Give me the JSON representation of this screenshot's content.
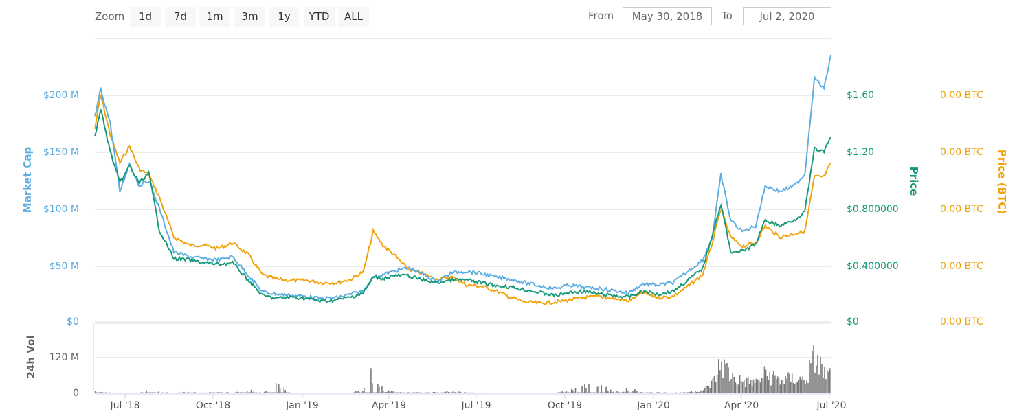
{
  "toolbar": {
    "zoom_label": "Zoom",
    "zoom_buttons": [
      "1d",
      "7d",
      "1m",
      "3m",
      "1y",
      "YTD",
      "ALL"
    ],
    "from_label": "From",
    "from_value": "May 30, 2018",
    "to_label": "To",
    "to_value": "Jul 2, 2020"
  },
  "colors": {
    "market_cap": "#5dade2",
    "price_usd": "#16997a",
    "price_btc": "#f0a30a",
    "volume": "#7a7a7a",
    "grid": "#e6e6e6"
  },
  "axes": {
    "market_cap_title": "Market Cap",
    "market_cap_ticks": [
      "$200 M",
      "$150 M",
      "$100 M",
      "$50 M",
      "$0"
    ],
    "price_title": "Price",
    "price_ticks": [
      "$1.60",
      "$1.20",
      "$0.800000",
      "$0.400000",
      "$0"
    ],
    "price_btc_title": "Price (BTC)",
    "price_btc_ticks": [
      "0.00 BTC",
      "0.00 BTC",
      "0.00 BTC",
      "0.00 BTC",
      "0.00 BTC"
    ],
    "volume_title": "24h Vol",
    "volume_ticks": [
      "$0",
      "120 M",
      "0"
    ],
    "x_ticks": [
      "Jul '18",
      "Oct '18",
      "Jan '19",
      "Apr '19",
      "Jul '19",
      "Oct '19",
      "Jan '20",
      "Apr '20",
      "Jul '20"
    ]
  },
  "chart_data": {
    "type": "line",
    "title": "",
    "x_range": [
      "May 30, 2018",
      "Jul 2, 2020"
    ],
    "x_ticks": [
      "Jul '18",
      "Oct '18",
      "Jan '19",
      "Apr '19",
      "Jul '19",
      "Oct '19",
      "Jan '20",
      "Apr '20",
      "Jul '20"
    ],
    "legend_position": "none",
    "grid": true,
    "x": [
      "2018-05-30",
      "2018-06-05",
      "2018-06-15",
      "2018-06-25",
      "2018-07-05",
      "2018-07-15",
      "2018-07-25",
      "2018-08-05",
      "2018-08-20",
      "2018-09-05",
      "2018-09-20",
      "2018-10-05",
      "2018-10-20",
      "2018-11-05",
      "2018-11-20",
      "2018-12-05",
      "2018-12-20",
      "2019-01-05",
      "2019-01-20",
      "2019-02-05",
      "2019-02-20",
      "2019-03-05",
      "2019-03-15",
      "2019-03-25",
      "2019-04-05",
      "2019-04-20",
      "2019-05-05",
      "2019-05-20",
      "2019-06-05",
      "2019-06-20",
      "2019-07-05",
      "2019-07-20",
      "2019-08-05",
      "2019-08-20",
      "2019-09-05",
      "2019-09-20",
      "2019-10-05",
      "2019-10-20",
      "2019-11-05",
      "2019-11-20",
      "2019-12-05",
      "2019-12-20",
      "2020-01-05",
      "2020-01-20",
      "2020-02-05",
      "2020-02-20",
      "2020-03-01",
      "2020-03-10",
      "2020-03-20",
      "2020-04-01",
      "2020-04-15",
      "2020-04-25",
      "2020-05-10",
      "2020-05-25",
      "2020-06-05",
      "2020-06-15",
      "2020-06-25",
      "2020-07-02"
    ],
    "series": [
      {
        "name": "Market Cap",
        "axis": "left",
        "unit": "USD M",
        "values": [
          180,
          205,
          175,
          115,
          140,
          120,
          125,
          100,
          62,
          58,
          56,
          55,
          58,
          42,
          27,
          25,
          24,
          23,
          21,
          22,
          25,
          28,
          40,
          42,
          45,
          48,
          43,
          36,
          44,
          45,
          43,
          40,
          38,
          35,
          32,
          30,
          33,
          31,
          30,
          28,
          26,
          34,
          33,
          35,
          45,
          55,
          75,
          130,
          90,
          80,
          85,
          120,
          115,
          120,
          130,
          215,
          205,
          235
        ]
      },
      {
        "name": "Price",
        "axis": "right-usd",
        "unit": "USD",
        "values": [
          1.3,
          1.5,
          1.2,
          0.98,
          1.1,
          0.98,
          1.05,
          0.65,
          0.45,
          0.44,
          0.42,
          0.41,
          0.42,
          0.3,
          0.19,
          0.17,
          0.18,
          0.17,
          0.15,
          0.16,
          0.18,
          0.21,
          0.32,
          0.31,
          0.33,
          0.33,
          0.3,
          0.28,
          0.3,
          0.3,
          0.28,
          0.26,
          0.25,
          0.23,
          0.21,
          0.19,
          0.21,
          0.22,
          0.2,
          0.19,
          0.18,
          0.22,
          0.2,
          0.22,
          0.3,
          0.38,
          0.62,
          0.83,
          0.5,
          0.5,
          0.55,
          0.72,
          0.68,
          0.72,
          0.78,
          1.22,
          1.2,
          1.3
        ]
      },
      {
        "name": "Price (BTC)",
        "axis": "right-btc",
        "unit": "BTC (relative)",
        "values": [
          170,
          200,
          165,
          140,
          155,
          135,
          130,
          110,
          75,
          68,
          68,
          65,
          70,
          60,
          42,
          38,
          37,
          37,
          35,
          35,
          38,
          45,
          80,
          68,
          60,
          47,
          43,
          38,
          40,
          33,
          32,
          28,
          22,
          18,
          17,
          18,
          20,
          22,
          23,
          21,
          19,
          26,
          22,
          23,
          32,
          42,
          70,
          100,
          75,
          67,
          70,
          85,
          75,
          78,
          80,
          128,
          128,
          140
        ]
      },
      {
        "name": "24h Vol",
        "axis": "volume",
        "unit": "USD M",
        "note": "bar series, baseline 0; spikes approx",
        "values": [
          8,
          5,
          3,
          2,
          3,
          2,
          12,
          4,
          2,
          5,
          2,
          6,
          2,
          12,
          1,
          32,
          1,
          1,
          1,
          1,
          2,
          20,
          90,
          10,
          8,
          5,
          3,
          5,
          7,
          3,
          2,
          2,
          1,
          1,
          2,
          2,
          12,
          25,
          30,
          6,
          20,
          3,
          5,
          2,
          6,
          12,
          45,
          130,
          70,
          50,
          45,
          80,
          55,
          60,
          55,
          150,
          80,
          70
        ]
      }
    ],
    "ylim_market_cap": [
      0,
      240
    ],
    "ylim_price": [
      0,
      1.92
    ],
    "ylim_volume": [
      0,
      240
    ]
  }
}
